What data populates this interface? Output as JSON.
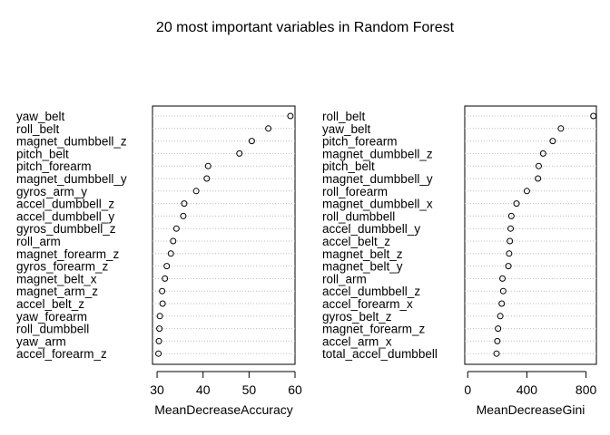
{
  "title": "20 most important variables in Random Forest",
  "chart_data": [
    {
      "type": "scatter",
      "subtype": "dotchart",
      "xlabel": "MeanDecreaseAccuracy",
      "xlim": [
        29,
        60
      ],
      "xticks": [
        30,
        40,
        50,
        60
      ],
      "grid": "dotted horizontal guide lines",
      "labels": [
        "yaw_belt",
        "roll_belt",
        "magnet_dumbbell_z",
        "pitch_belt",
        "pitch_forearm",
        "magnet_dumbbell_y",
        "gyros_arm_y",
        "accel_dumbbell_z",
        "accel_dumbbell_y",
        "gyros_dumbbell_z",
        "roll_arm",
        "magnet_forearm_z",
        "gyros_forearm_z",
        "magnet_belt_x",
        "magnet_arm_z",
        "accel_belt_z",
        "yaw_forearm",
        "roll_dumbbell",
        "yaw_arm",
        "accel_forearm_z"
      ],
      "values": [
        59.0,
        54.2,
        50.6,
        47.9,
        41.1,
        40.8,
        38.5,
        35.9,
        35.7,
        34.2,
        33.5,
        33.0,
        32.1,
        31.7,
        31.1,
        31.2,
        30.6,
        30.5,
        30.4,
        30.3
      ]
    },
    {
      "type": "scatter",
      "subtype": "dotchart",
      "xlabel": "MeanDecreaseGini",
      "xlim": [
        -20,
        870
      ],
      "xticks": [
        0,
        400,
        800
      ],
      "grid": "dotted horizontal guide lines",
      "labels": [
        "roll_belt",
        "yaw_belt",
        "pitch_forearm",
        "magnet_dumbbell_z",
        "pitch_belt",
        "magnet_dumbbell_y",
        "roll_forearm",
        "magnet_dumbbell_x",
        "roll_dumbbell",
        "accel_dumbbell_y",
        "accel_belt_z",
        "magnet_belt_z",
        "magnet_belt_y",
        "roll_arm",
        "accel_dumbbell_z",
        "accel_forearm_x",
        "gyros_belt_z",
        "magnet_forearm_z",
        "accel_arm_x",
        "total_accel_dumbbell"
      ],
      "values": [
        850,
        630,
        575,
        510,
        480,
        475,
        400,
        330,
        295,
        290,
        285,
        280,
        275,
        235,
        240,
        230,
        220,
        205,
        200,
        195
      ]
    }
  ]
}
